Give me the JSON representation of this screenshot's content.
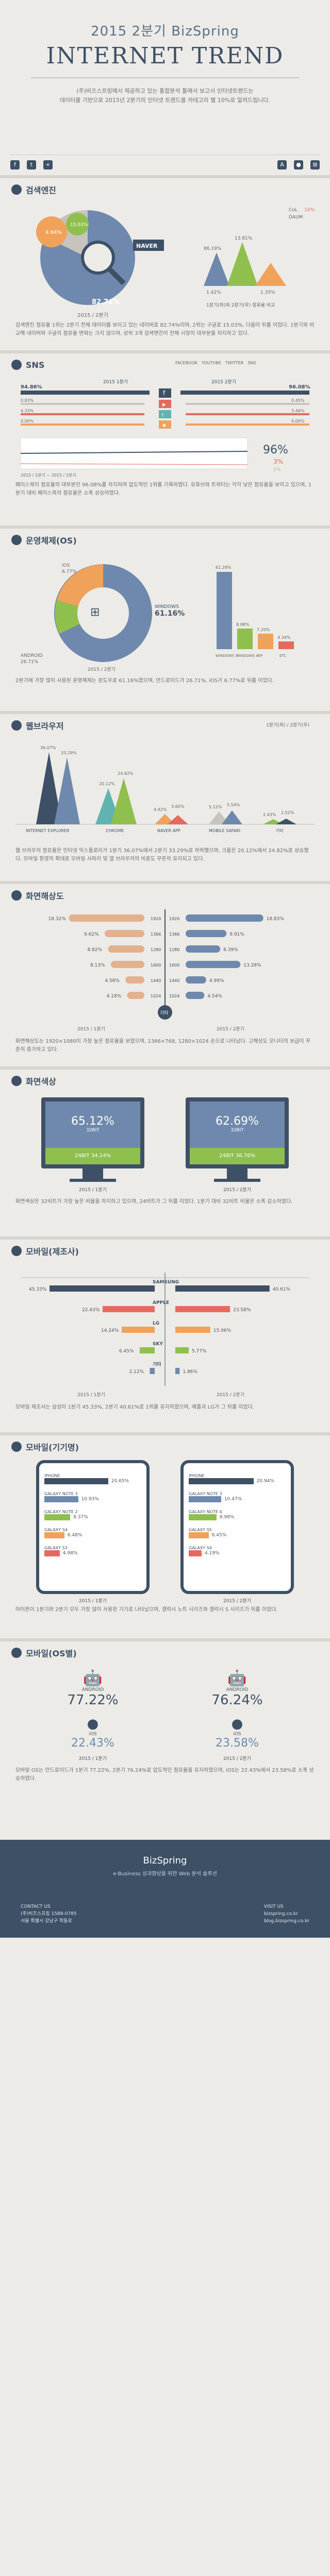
{
  "header": {
    "subtitle": "2015 2분기 BizSpring",
    "title": "INTERNET TREND",
    "intro_line1": "(주)비즈스프링에서 제공하고 있는 통합분석 툴에서 보고서 인터넷트렌드는",
    "intro_line2": "데이터를 기반으로 2015년 2분기의 인터넷 트렌드를 카테고리 별 10%로 알려드립니다."
  },
  "sections": {
    "search": {
      "title": "검색엔진",
      "legend": [
        {
          "label": "CoL",
          "value": "10%"
        },
        {
          "label": "DAUM",
          "value": ""
        }
      ],
      "pie_labels": {
        "naver_share": "82.74%",
        "other_a": "4.84%",
        "other_b": "15.03%",
        "logo": "NAVER"
      },
      "period": "2015 / 2분기",
      "side": {
        "a": "1.42%",
        "b": "1.35%",
        "c": "86.19%",
        "d": "13.81%"
      },
      "side_caption": "1분기(좌)와 2분기(우) 점유율 비교",
      "caption": "검색엔진 점유율 1위는 2분기 전체 데이터를 보이고 있는 네이버로 82.74%이며, 2위는 구글로 15.03%, 다음이 뒤를 이었다. 1분기와 비교해 네이버와 구글의 점유율 변화는 크지 않으며, 상위 3개 검색엔진이 전체 시장의 대부분을 차지하고 있다."
    },
    "sns": {
      "title": "SNS",
      "legend": [
        "FACEBOOK",
        "YOUTUBE",
        "TWITTER",
        "SNS"
      ],
      "rows_left": [
        "94.86%",
        "0.83%",
        "4.33%",
        "0.00%"
      ],
      "rows_right": [
        "96.08%",
        "0.45%",
        "3.46%",
        "0.00%"
      ],
      "q_left": "2015 1분기",
      "q_right": "2015 2분기",
      "big_value": "96%",
      "small_value": "3%",
      "tiny_value": "1%",
      "period": "2015 / 1분기 ~ 2015 / 2분기",
      "caption": "페이스북이 점유율의 대부분인 96.08%를 차지하며 압도적인 1위를 기록하였다. 유튜브와 트위터는 각각 낮은 점유율을 보이고 있으며, 1분기 대비 페이스북의 점유율은 소폭 상승하였다."
    },
    "os": {
      "title": "운영체제(OS)",
      "labels": {
        "ios": "iOS",
        "ios_v": "6.77%",
        "android": "ANDROID",
        "android_v": "26.71%",
        "windows": "WINDOWS",
        "windows_v": "61.16%"
      },
      "bars": [
        {
          "label": "WINDOWS 7",
          "value": "61.28%"
        },
        {
          "label": "WINDOWS 8",
          "value": "8.98%"
        },
        {
          "label": "XP",
          "value": "7.20%"
        },
        {
          "label": "ETC",
          "value": "4.34%"
        }
      ],
      "period": "2015 / 2분기",
      "caption": "2분기에 가장 많이 사용된 운영체제는 윈도우로 61.16%였으며, 안드로이드가 26.71%, iOS가 6.77%로 뒤를 이었다."
    },
    "browser": {
      "title": "웹브라우저",
      "legend": "1분기(좌) / 2분기(우)",
      "bars": [
        {
          "name": "INTERNET EXPLORER",
          "q1": "36.07%",
          "q2": "33.29%"
        },
        {
          "name": "CHROME",
          "q1": "20.12%",
          "q2": "24.82%"
        },
        {
          "name": "NAVER APP",
          "q1": "4.42%",
          "q2": "3.60%"
        },
        {
          "name": "MOBILE SAFARI",
          "q1": "5.12%",
          "q2": "5.54%"
        },
        {
          "name": "기타",
          "q1": "2.43%",
          "q2": "2.52%"
        }
      ],
      "caption": "웹 브라우저 점유율은 인터넷 익스플로러가 1분기 36.07%에서 2분기 33.29%로 하락했으며, 크롬은 20.12%에서 24.82%로 상승했다. 모바일 환경의 확대로 모바일 사파리 및 앱 브라우저의 비중도 꾸준히 유지되고 있다."
    },
    "resolution": {
      "title": "화면해상도",
      "rows": [
        {
          "left": "18.32%",
          "res": "1920",
          "right": "18.83%"
        },
        {
          "left": "9.62%",
          "res": "1366",
          "right": "9.91%"
        },
        {
          "left": "8.82%",
          "res": "1280",
          "right": "8.39%"
        },
        {
          "left": "8.13%",
          "res": "1600",
          "right": "13.28%"
        },
        {
          "left": "4.58%",
          "res": "1440",
          "right": "4.99%"
        },
        {
          "left": "4.18%",
          "res": "1024",
          "right": "4.54%"
        }
      ],
      "center": "기타",
      "q_left": "2015 / 1분기",
      "q_right": "2015 / 2분기",
      "caption": "화면해상도는 1920×1080이 가장 높은 점유율을 보였으며, 1366×768, 1280×1024 순으로 나타났다. 고해상도 모니터의 보급이 꾸준히 증가하고 있다."
    },
    "screen": {
      "title": "화면색상",
      "left": {
        "top": "65.12%",
        "top_label": "32BIT",
        "bottom": "24BIT 34.14%",
        "period": "2015 / 1분기"
      },
      "right": {
        "top": "62.69%",
        "top_label": "32BIT",
        "bottom": "24BIT 36.76%",
        "period": "2015 / 2분기"
      },
      "caption": "화면색상은 32비트가 가장 높은 비율을 차지하고 있으며, 24비트가 그 뒤를 이었다. 1분기 대비 32비트 비율은 소폭 감소하였다."
    },
    "maker": {
      "title": "모바일(제조사)",
      "left_top": "45.33%",
      "right_top": "40.61%",
      "rows": [
        {
          "brand": "SAMSUNG",
          "left": "45.33%",
          "right": "40.61%"
        },
        {
          "brand": "APPLE",
          "left": "22.43%",
          "right": "23.58%"
        },
        {
          "brand": "LG",
          "left": "14.24%",
          "right": "15.06%"
        },
        {
          "brand": "SKY",
          "left": "6.45%",
          "right": "5.77%"
        },
        {
          "brand": "기타",
          "left": "2.12%",
          "right": "1.86%"
        }
      ],
      "q_left": "2015 / 1분기",
      "q_right": "2015 / 2분기",
      "caption": "모바일 제조사는 삼성이 1분기 45.33%, 2분기 40.61%로 1위를 유지하였으며, 애플과 LG가 그 뒤를 이었다."
    },
    "device": {
      "title": "모바일(기기명)",
      "left_rows": [
        {
          "name": "IPHONE",
          "v": "20.65%"
        },
        {
          "name": "GALAXY NOTE 3",
          "v": "10.93%"
        },
        {
          "name": "GALAXY NOTE 2",
          "v": "8.37%"
        },
        {
          "name": "GALAXY S4",
          "v": "6.48%"
        },
        {
          "name": "GALAXY S3",
          "v": "4.98%"
        }
      ],
      "right_rows": [
        {
          "name": "IPHONE",
          "v": "20.94%"
        },
        {
          "name": "GALAXY NOTE 3",
          "v": "10.47%"
        },
        {
          "name": "GALAXY NOTE 4",
          "v": "8.98%"
        },
        {
          "name": "GALAXY S5",
          "v": "6.45%"
        },
        {
          "name": "GALAXY S4",
          "v": "4.19%"
        }
      ],
      "q_left": "2015 / 1분기",
      "q_right": "2015 / 2분기",
      "caption": "아이폰이 1분기와 2분기 모두 가장 많이 사용된 기기로 나타났으며, 갤럭시 노트 시리즈와 갤럭시 S 시리즈가 뒤를 이었다."
    },
    "mobile_os": {
      "title": "모바일(OS별)",
      "left": {
        "android_label": "ANDROID",
        "android": "77.22%",
        "ios_label": "iOS",
        "ios": "22.43%",
        "period": "2015 / 1분기"
      },
      "right": {
        "android_label": "ANDROID",
        "android": "76.24%",
        "ios_label": "iOS",
        "ios": "23.58%",
        "period": "2015 / 2분기"
      },
      "caption": "모바일 OS는 안드로이드가 1분기 77.22%, 2분기 76.24%로 압도적인 점유율을 유지하였으며, iOS는 22.43%에서 23.58%로 소폭 상승하였다."
    }
  },
  "footer": {
    "brand": "BizSpring",
    "slogan": "e-Business 성과향상을 위한 Web 분석 솔루션",
    "contact_label": "CONTACT US",
    "contact_1": "(주)비즈스프링 1588-0785",
    "contact_2": "서울 특별시 강남구 학동로",
    "visit_label": "VISIT US",
    "visit_1": "bizspring.co.kr",
    "visit_2": "blog.bizspring.co.kr"
  },
  "colors": {
    "navy": "#3e5066",
    "blue": "#6e89ad",
    "orange": "#f0a25a",
    "green": "#8fbf4d",
    "red": "#e56a5e",
    "teal": "#5fb4b0",
    "gray": "#c6c4bd"
  }
}
